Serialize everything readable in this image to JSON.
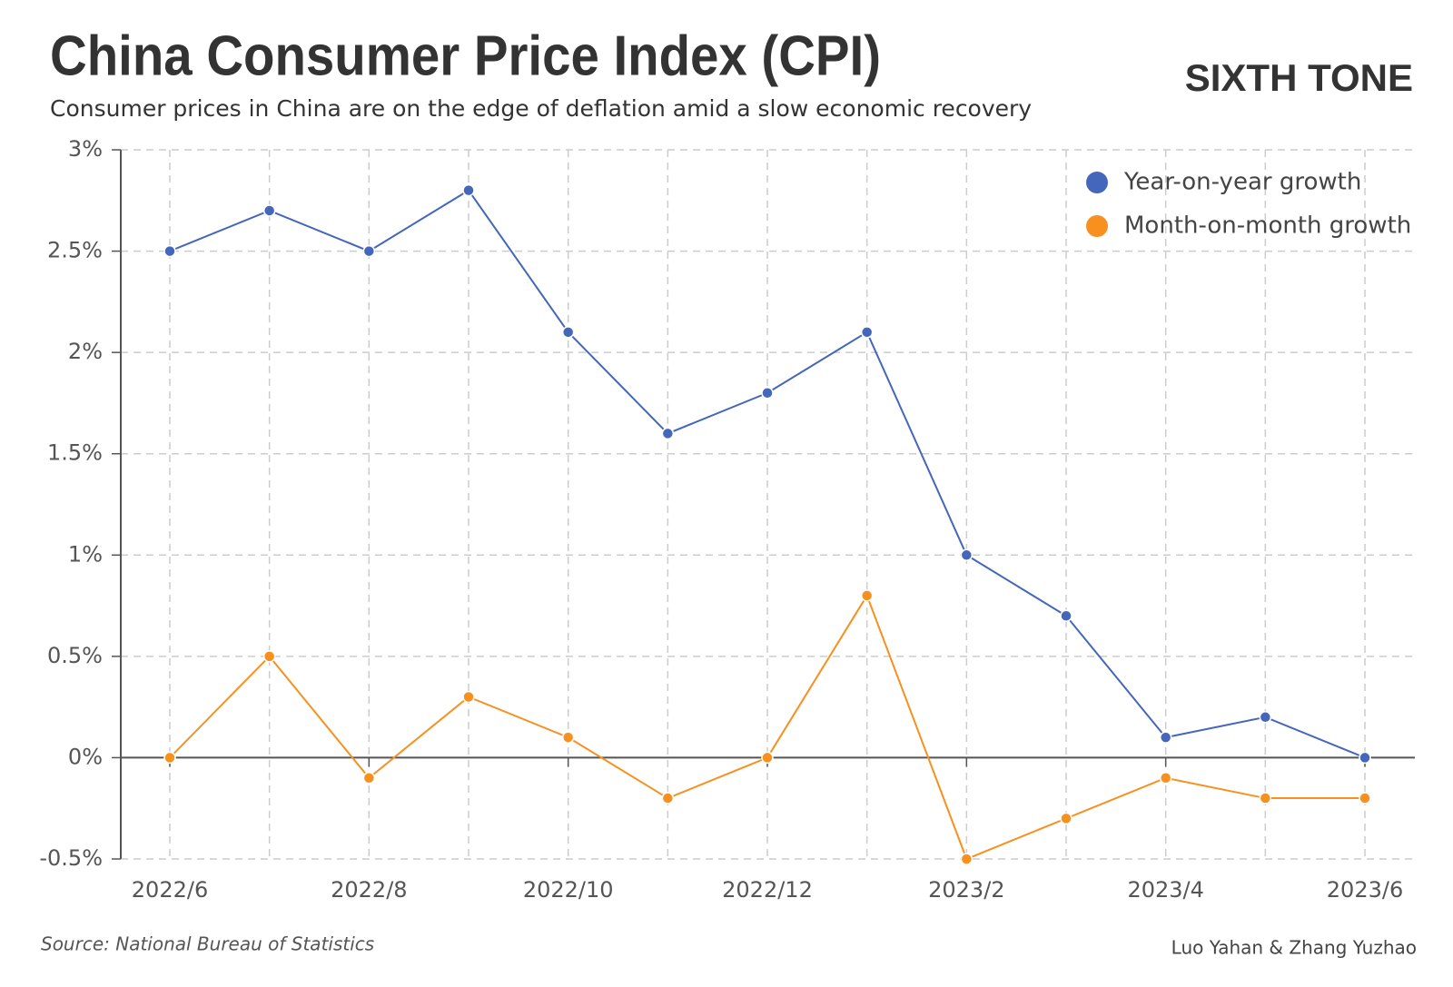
{
  "chart_data": {
    "type": "line",
    "title": "China Consumer Price Index (CPI)",
    "subtitle": "Consumer prices in China are on the edge of deflation amid a slow economic recovery",
    "brand": "SIXTH TONE",
    "source": "Source: National Bureau of Statistics",
    "credit": "Luo Yahan & Zhang Yuzhao",
    "categories": [
      "2022/6",
      null,
      "2022/8",
      null,
      "2022/10",
      null,
      "2022/12",
      null,
      "2023/2",
      null,
      "2023/4",
      null,
      "2023/6"
    ],
    "series": [
      {
        "name": "Year-on-year growth",
        "color": "#4466bb",
        "values": [
          2.5,
          2.7,
          2.5,
          2.8,
          2.1,
          1.6,
          1.8,
          2.1,
          1.0,
          0.7,
          0.1,
          0.2,
          0.0
        ]
      },
      {
        "name": "Month-on-month growth",
        "color": "#f7901e",
        "values": [
          0.0,
          0.5,
          -0.1,
          0.3,
          0.1,
          -0.2,
          0.0,
          0.8,
          -0.5,
          -0.3,
          -0.1,
          -0.2,
          -0.2
        ]
      }
    ],
    "ylim": [
      -0.5,
      3
    ],
    "yticks": [
      {
        "value": -0.5,
        "label": "-0.5%"
      },
      {
        "value": 0,
        "label": "0%"
      },
      {
        "value": 0.5,
        "label": "0.5%"
      },
      {
        "value": 1,
        "label": "1%"
      },
      {
        "value": 1.5,
        "label": "1.5%"
      },
      {
        "value": 2,
        "label": "2%"
      },
      {
        "value": 2.5,
        "label": "2.5%"
      },
      {
        "value": 3,
        "label": "3%"
      }
    ],
    "grid": true,
    "legend": "top-right"
  }
}
